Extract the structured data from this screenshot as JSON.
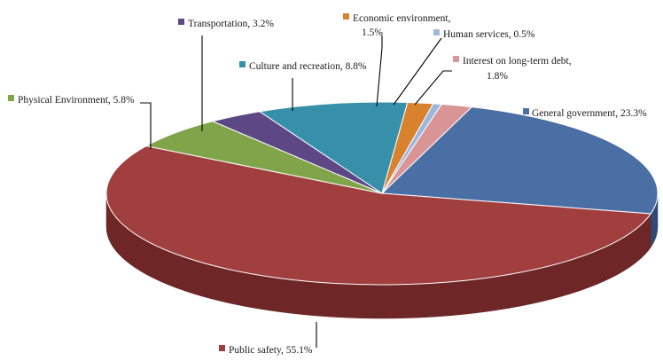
{
  "chart_data": {
    "type": "pie",
    "style": "3d",
    "legend": "none",
    "slices": [
      {
        "label": "General government",
        "value": 23.3,
        "text_lines": [
          "General government, 23.3%"
        ],
        "color": "#4A6FA5",
        "side": "#2F4A74"
      },
      {
        "label": "Public safety",
        "value": 55.1,
        "text_lines": [
          "Public safety, 55.1%"
        ],
        "color": "#A13E3E",
        "side": "#6E2626"
      },
      {
        "label": "Physical Environment",
        "value": 5.8,
        "text_lines": [
          "Physical Environment, 5.8%"
        ],
        "color": "#7FA44A",
        "side": "#55702F"
      },
      {
        "label": "Transportation",
        "value": 3.2,
        "text_lines": [
          "Transportation, 3.2%"
        ],
        "color": "#5E4785",
        "side": "#3E2E5B"
      },
      {
        "label": "Culture and recreation",
        "value": 8.8,
        "text_lines": [
          "Culture and recreation, 8.8%"
        ],
        "color": "#3690A9",
        "side": "#235F71"
      },
      {
        "label": "Economic environment",
        "value": 1.5,
        "text_lines": [
          "Economic environment,",
          "1.5%"
        ],
        "color": "#D8822E",
        "side": "#97581C"
      },
      {
        "label": "Human services",
        "value": 0.5,
        "text_lines": [
          "Human services, 0.5%"
        ],
        "color": "#9DB7DD",
        "side": "#6E88AE"
      },
      {
        "label": "Interest on long-term debt",
        "value": 1.8,
        "text_lines": [
          "Interest on long-term debt,",
          "1.8%"
        ],
        "color": "#D99595",
        "side": "#A66666"
      }
    ]
  }
}
